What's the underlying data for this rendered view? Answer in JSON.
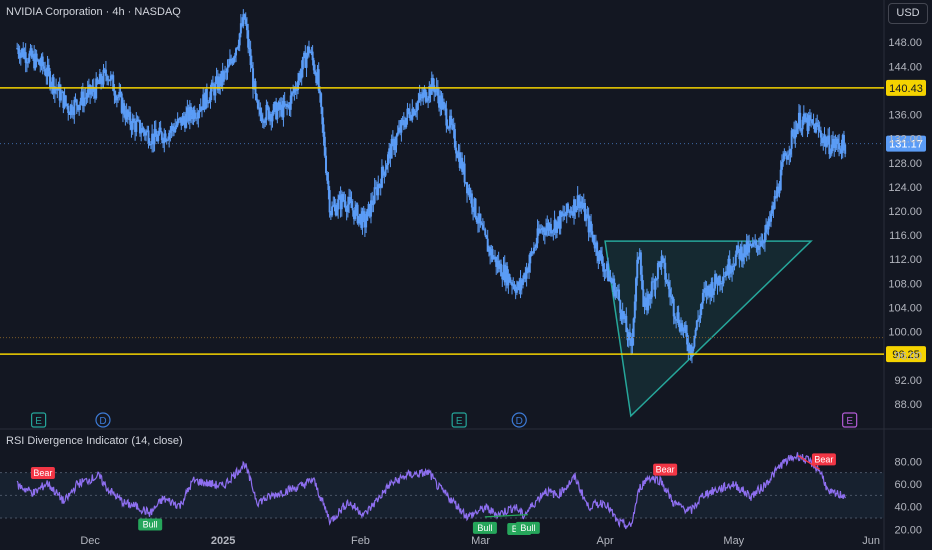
{
  "header": {
    "title": "NVIDIA Corporation · 4h · NASDAQ",
    "currency": "USD"
  },
  "colors": {
    "background": "#131722",
    "candle": "#5b9cf6",
    "level_line": "#f5d300",
    "triangle": "#26a69a",
    "rsi_line": "#8e6ff0",
    "bull": "#26a65b",
    "bear": "#f23645",
    "axis_text": "#b2b5be"
  },
  "chart_data": [
    {
      "type": "candlestick",
      "title": "NVIDIA Corporation · 4h · NASDAQ",
      "ylim": [
        84,
        155
      ],
      "y_ticks": [
        88,
        92,
        96,
        100,
        104,
        108,
        112,
        116,
        120,
        124,
        128,
        132,
        136,
        144,
        148
      ],
      "x_ticks": [
        "Dec",
        "2025",
        "Feb",
        "Mar",
        "Apr",
        "May",
        "Jun"
      ],
      "horizontal_levels": [
        {
          "label": "140.43",
          "value": 140.43
        },
        {
          "label": "96.25",
          "value": 96.25
        }
      ],
      "last_price": {
        "label": "131.17",
        "value": 131.17
      },
      "close_path": [
        {
          "date": "2024-11-15",
          "close": 147
        },
        {
          "date": "2024-11-21",
          "close": 144
        },
        {
          "date": "2024-11-27",
          "close": 137
        },
        {
          "date": "2024-12-03",
          "close": 140
        },
        {
          "date": "2024-12-06",
          "close": 143
        },
        {
          "date": "2024-12-11",
          "close": 135
        },
        {
          "date": "2024-12-17",
          "close": 132
        },
        {
          "date": "2024-12-20",
          "close": 133
        },
        {
          "date": "2024-12-27",
          "close": 137
        },
        {
          "date": "2025-01-03",
          "close": 143
        },
        {
          "date": "2025-01-07",
          "close": 152
        },
        {
          "date": "2025-01-10",
          "close": 136
        },
        {
          "date": "2025-01-17",
          "close": 137
        },
        {
          "date": "2025-01-22",
          "close": 147
        },
        {
          "date": "2025-01-24",
          "close": 142
        },
        {
          "date": "2025-01-27",
          "close": 120
        },
        {
          "date": "2025-01-30",
          "close": 122
        },
        {
          "date": "2025-02-04",
          "close": 118
        },
        {
          "date": "2025-02-10",
          "close": 130
        },
        {
          "date": "2025-02-14",
          "close": 136
        },
        {
          "date": "2025-02-20",
          "close": 141
        },
        {
          "date": "2025-02-24",
          "close": 134
        },
        {
          "date": "2025-02-28",
          "close": 124
        },
        {
          "date": "2025-03-04",
          "close": 115
        },
        {
          "date": "2025-03-07",
          "close": 111
        },
        {
          "date": "2025-03-12",
          "close": 107
        },
        {
          "date": "2025-03-17",
          "close": 117
        },
        {
          "date": "2025-03-21",
          "close": 118
        },
        {
          "date": "2025-03-26",
          "close": 122
        },
        {
          "date": "2025-03-31",
          "close": 112
        },
        {
          "date": "2025-04-04",
          "close": 106
        },
        {
          "date": "2025-04-07",
          "close": 97
        },
        {
          "date": "2025-04-09",
          "close": 115
        },
        {
          "date": "2025-04-10",
          "close": 103
        },
        {
          "date": "2025-04-14",
          "close": 112
        },
        {
          "date": "2025-04-17",
          "close": 104
        },
        {
          "date": "2025-04-21",
          "close": 97
        },
        {
          "date": "2025-04-24",
          "close": 106
        },
        {
          "date": "2025-04-29",
          "close": 110
        },
        {
          "date": "2025-05-02",
          "close": 113
        },
        {
          "date": "2025-05-06",
          "close": 114
        },
        {
          "date": "2025-05-09",
          "close": 117
        },
        {
          "date": "2025-05-13",
          "close": 129
        },
        {
          "date": "2025-05-16",
          "close": 135
        },
        {
          "date": "2025-05-20",
          "close": 134
        },
        {
          "date": "2025-05-23",
          "close": 131
        },
        {
          "date": "2025-05-27",
          "close": 131
        }
      ],
      "event_markers": [
        {
          "label": "E",
          "date": "2024-11-20"
        },
        {
          "label": "D",
          "date": "2024-12-05"
        },
        {
          "label": "E",
          "date": "2025-02-26"
        },
        {
          "label": "D",
          "date": "2025-03-12"
        },
        {
          "label": "E",
          "date": "2025-05-28"
        }
      ],
      "triangle_pattern": {
        "points": [
          {
            "date": "2025-04-01",
            "price": 115
          },
          {
            "date": "2025-04-07",
            "price": 86
          },
          {
            "date": "2025-05-19",
            "price": 115
          }
        ]
      }
    },
    {
      "type": "line",
      "title": "RSI Divergence Indicator (14, close)",
      "ylim": [
        15,
        90
      ],
      "y_ticks": [
        20.0,
        40.0,
        60.0,
        80.0
      ],
      "bands": [
        30,
        70
      ],
      "series": [
        {
          "values": [
            {
              "date": "2024-11-15",
              "rsi": 59
            },
            {
              "date": "2024-11-19",
              "rsi": 52
            },
            {
              "date": "2024-11-22",
              "rsi": 61
            },
            {
              "date": "2024-11-26",
              "rsi": 44
            },
            {
              "date": "2024-11-29",
              "rsi": 60
            },
            {
              "date": "2024-12-04",
              "rsi": 67
            },
            {
              "date": "2024-12-06",
              "rsi": 56
            },
            {
              "date": "2024-12-10",
              "rsi": 43
            },
            {
              "date": "2024-12-13",
              "rsi": 40
            },
            {
              "date": "2024-12-16",
              "rsi": 34
            },
            {
              "date": "2024-12-19",
              "rsi": 47
            },
            {
              "date": "2024-12-23",
              "rsi": 41
            },
            {
              "date": "2024-12-26",
              "rsi": 63
            },
            {
              "date": "2025-01-02",
              "rsi": 58
            },
            {
              "date": "2025-01-07",
              "rsi": 78
            },
            {
              "date": "2025-01-10",
              "rsi": 44
            },
            {
              "date": "2025-01-15",
              "rsi": 52
            },
            {
              "date": "2025-01-20",
              "rsi": 58
            },
            {
              "date": "2025-01-23",
              "rsi": 64
            },
            {
              "date": "2025-01-27",
              "rsi": 27
            },
            {
              "date": "2025-01-31",
              "rsi": 44
            },
            {
              "date": "2025-02-04",
              "rsi": 33
            },
            {
              "date": "2025-02-10",
              "rsi": 60
            },
            {
              "date": "2025-02-14",
              "rsi": 68
            },
            {
              "date": "2025-02-19",
              "rsi": 70
            },
            {
              "date": "2025-02-21",
              "rsi": 58
            },
            {
              "date": "2025-02-25",
              "rsi": 43
            },
            {
              "date": "2025-02-28",
              "rsi": 31
            },
            {
              "date": "2025-03-04",
              "rsi": 39
            },
            {
              "date": "2025-03-07",
              "rsi": 33
            },
            {
              "date": "2025-03-11",
              "rsi": 40
            },
            {
              "date": "2025-03-13",
              "rsi": 32
            },
            {
              "date": "2025-03-18",
              "rsi": 54
            },
            {
              "date": "2025-03-21",
              "rsi": 50
            },
            {
              "date": "2025-03-25",
              "rsi": 66
            },
            {
              "date": "2025-03-28",
              "rsi": 40
            },
            {
              "date": "2025-04-01",
              "rsi": 44
            },
            {
              "date": "2025-04-04",
              "rsi": 26
            },
            {
              "date": "2025-04-07",
              "rsi": 22
            },
            {
              "date": "2025-04-09",
              "rsi": 56
            },
            {
              "date": "2025-04-11",
              "rsi": 66
            },
            {
              "date": "2025-04-14",
              "rsi": 63
            },
            {
              "date": "2025-04-17",
              "rsi": 43
            },
            {
              "date": "2025-04-21",
              "rsi": 36
            },
            {
              "date": "2025-04-24",
              "rsi": 51
            },
            {
              "date": "2025-04-28",
              "rsi": 56
            },
            {
              "date": "2025-05-01",
              "rsi": 60
            },
            {
              "date": "2025-05-05",
              "rsi": 49
            },
            {
              "date": "2025-05-08",
              "rsi": 58
            },
            {
              "date": "2025-05-12",
              "rsi": 77
            },
            {
              "date": "2025-05-14",
              "rsi": 82
            },
            {
              "date": "2025-05-16",
              "rsi": 85
            },
            {
              "date": "2025-05-19",
              "rsi": 79
            },
            {
              "date": "2025-05-21",
              "rsi": 72
            },
            {
              "date": "2025-05-22",
              "rsi": 64
            },
            {
              "date": "2025-05-23",
              "rsi": 52
            },
            {
              "date": "2025-05-27",
              "rsi": 50
            }
          ]
        }
      ],
      "divergence_labels": [
        {
          "label": "Bear",
          "date": "2024-11-21",
          "rsi": 60
        },
        {
          "label": "Bull",
          "date": "2024-12-16",
          "rsi": 34
        },
        {
          "label": "Bull",
          "date": "2025-03-04",
          "rsi": 31
        },
        {
          "label": "Bull",
          "date": "2025-03-12",
          "rsi": 30
        },
        {
          "label": "Bull",
          "date": "2025-03-14",
          "rsi": 31
        },
        {
          "label": "Bear",
          "date": "2025-04-15",
          "rsi": 63
        },
        {
          "label": "Bear",
          "date": "2025-05-22",
          "rsi": 72
        }
      ],
      "divergence_lines": [
        {
          "from": {
            "date": "2025-03-04",
            "rsi": 31
          },
          "to": {
            "date": "2025-03-14",
            "rsi": 33
          }
        },
        {
          "from": {
            "date": "2025-05-16",
            "rsi": 85
          },
          "to": {
            "date": "2025-05-21",
            "rsi": 73
          }
        }
      ]
    }
  ]
}
